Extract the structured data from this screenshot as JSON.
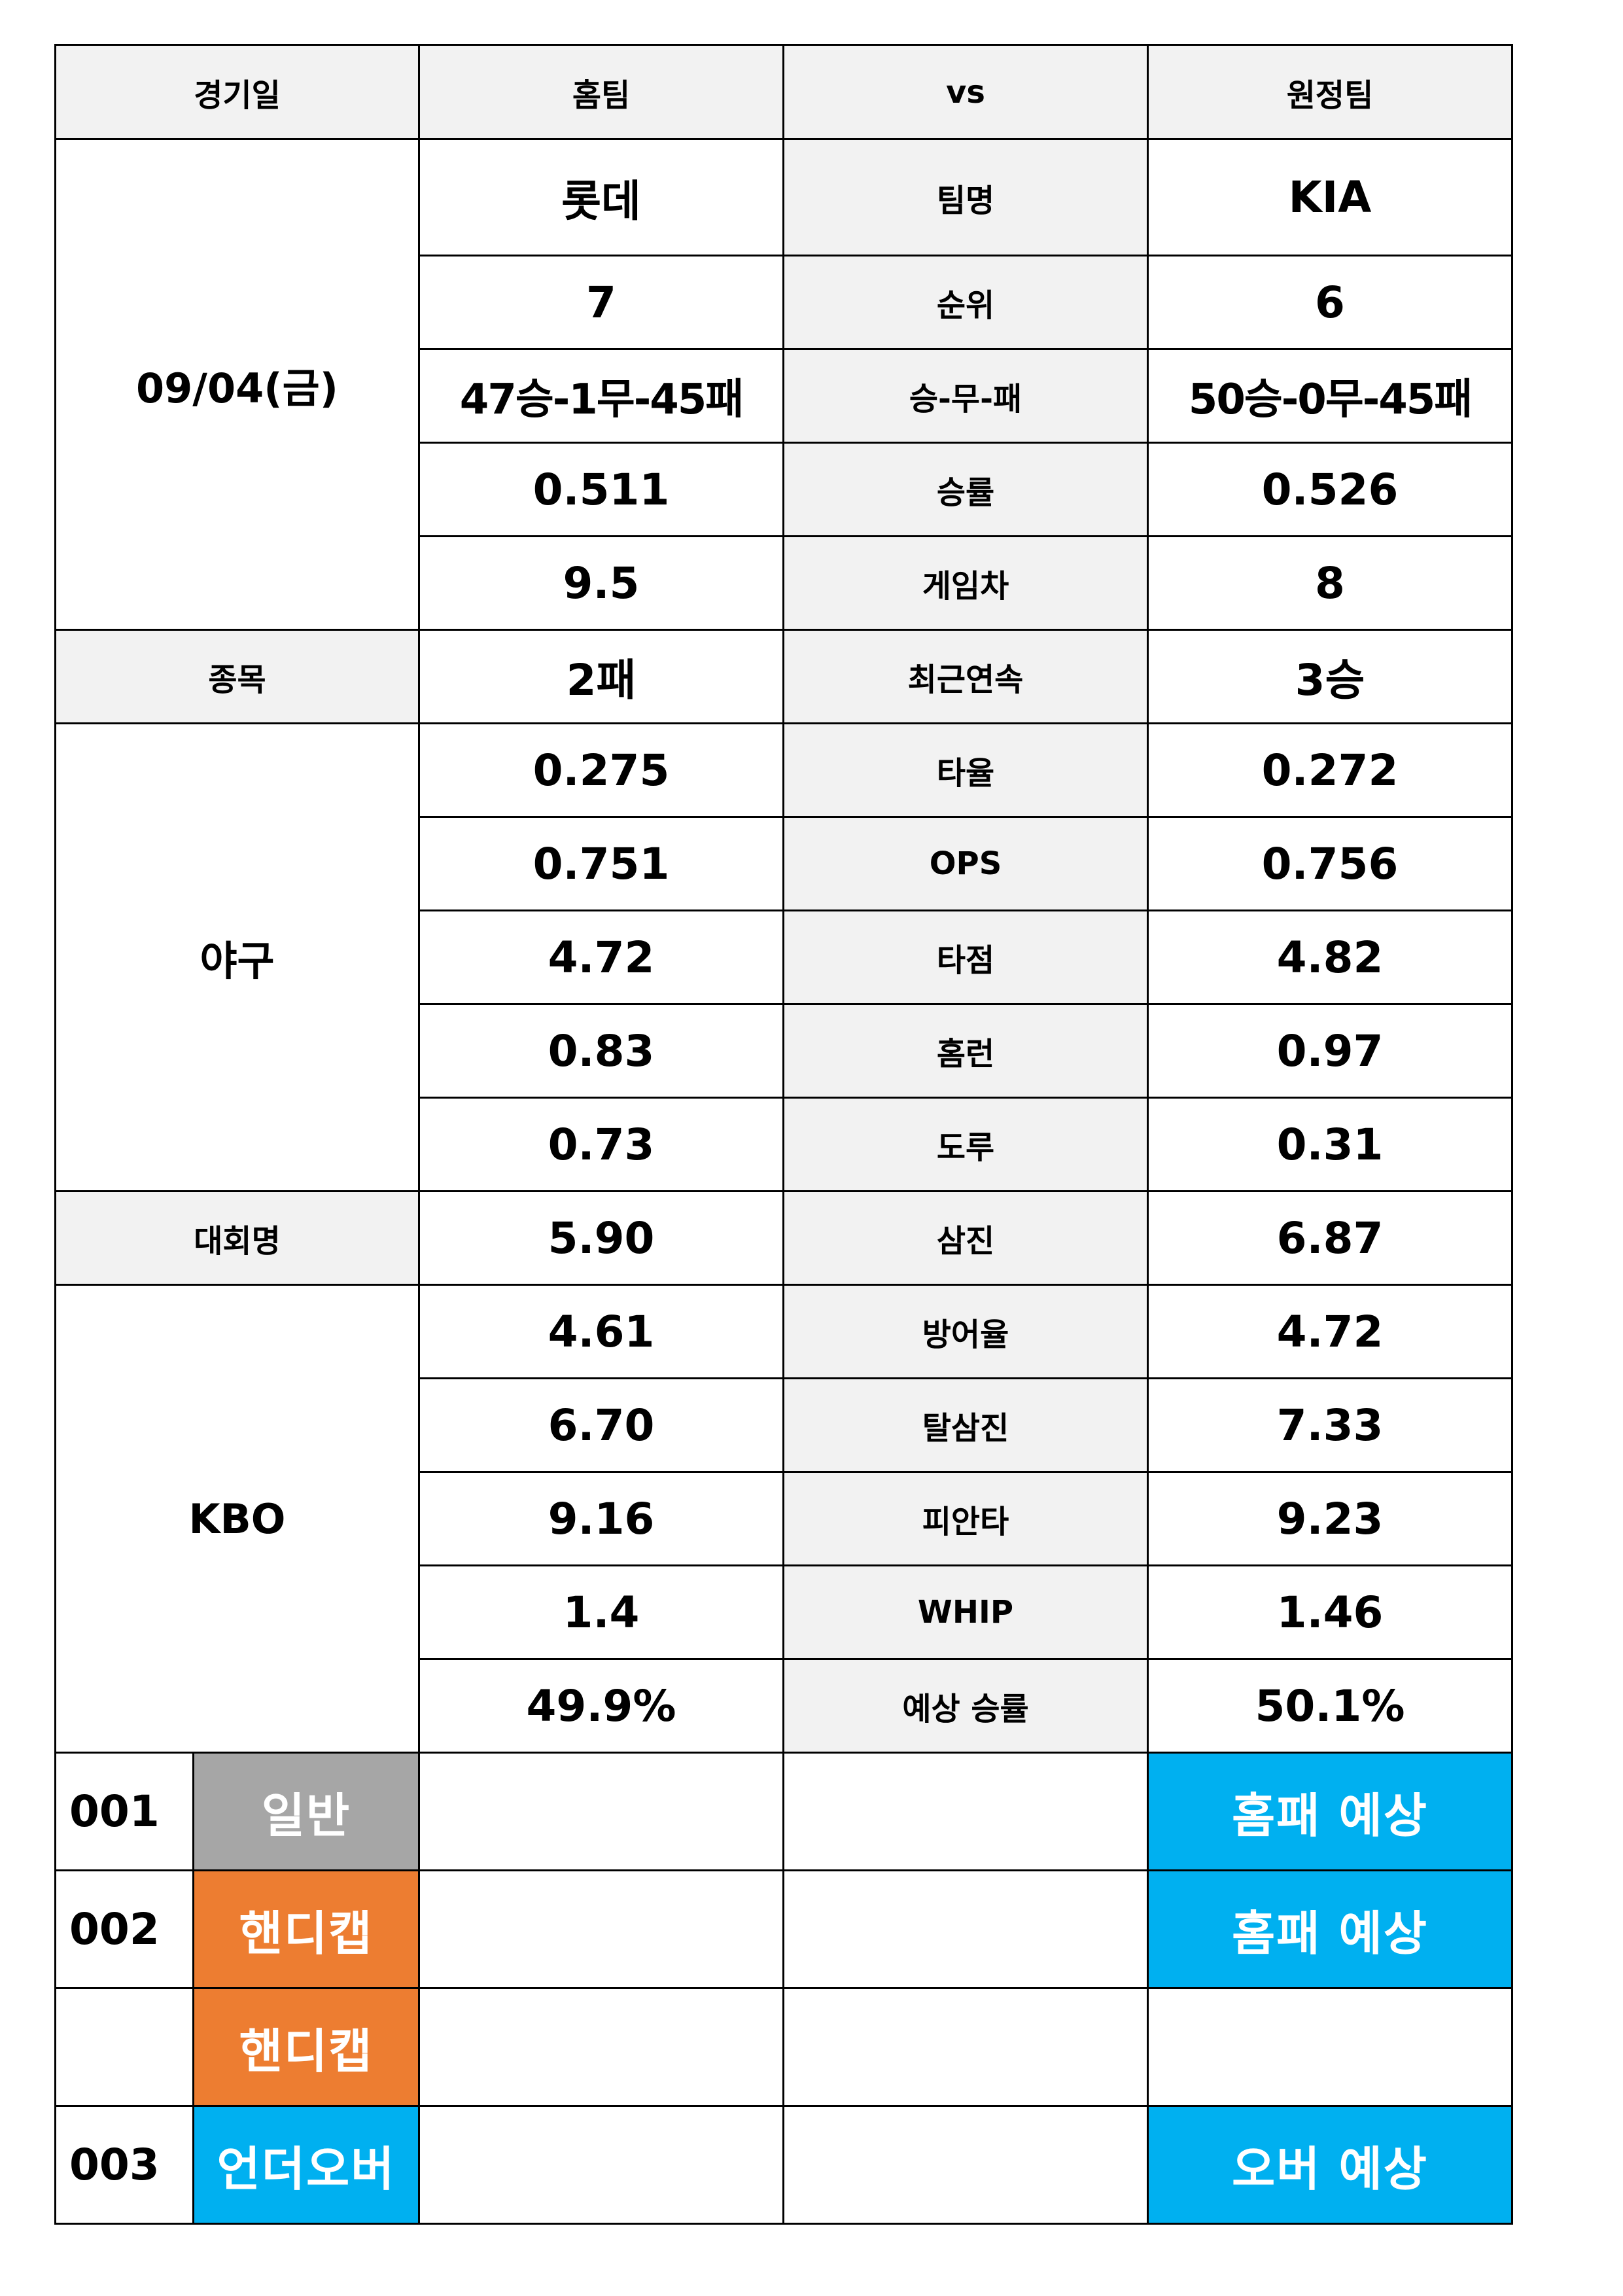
{
  "header": {
    "date_col": "경기일",
    "home_col": "홈팀",
    "vs_col": "vs",
    "away_col": "원정팀"
  },
  "match": {
    "date": "09/04(금)",
    "sport_label": "종목",
    "sport": "야구",
    "league_label": "대회명",
    "league": "KBO"
  },
  "stats": [
    {
      "label": "팀명",
      "home": "롯데",
      "away": "KIA"
    },
    {
      "label": "순위",
      "home": "7",
      "away": "6"
    },
    {
      "label": "승-무-패",
      "home": "47승-1무-45패",
      "away": "50승-0무-45패"
    },
    {
      "label": "승률",
      "home": "0.511",
      "away": "0.526"
    },
    {
      "label": "게임차",
      "home": "9.5",
      "away": "8"
    },
    {
      "label": "최근연속",
      "home": "2패",
      "away": "3승"
    },
    {
      "label": "타율",
      "home": "0.275",
      "away": "0.272"
    },
    {
      "label": "OPS",
      "home": "0.751",
      "away": "0.756"
    },
    {
      "label": "타점",
      "home": "4.72",
      "away": "4.82"
    },
    {
      "label": "홈런",
      "home": "0.83",
      "away": "0.97"
    },
    {
      "label": "도루",
      "home": "0.73",
      "away": "0.31"
    },
    {
      "label": "삼진",
      "home": "5.90",
      "away": "6.87"
    },
    {
      "label": "방어율",
      "home": "4.61",
      "away": "4.72"
    },
    {
      "label": "탈삼진",
      "home": "6.70",
      "away": "7.33"
    },
    {
      "label": "피안타",
      "home": "9.16",
      "away": "9.23"
    },
    {
      "label": "WHIP",
      "home": "1.4",
      "away": "1.46"
    },
    {
      "label": "예상 승률",
      "home": "49.9%",
      "away": "50.1%"
    }
  ],
  "predictions": [
    {
      "number": "001",
      "type": "일반",
      "type_color": "#a6a6a6",
      "result": "홈패 예상"
    },
    {
      "number": "002",
      "type": "핸디캡",
      "type_color": "#ed7d31",
      "result": "홈패 예상"
    },
    {
      "number": "",
      "type": "핸디캡",
      "type_color": "#ed7d31",
      "result": ""
    },
    {
      "number": "003",
      "type": "언더오버",
      "type_color": "#00b0f0",
      "result": "오버 예상"
    }
  ],
  "colors": {
    "header_bg": "#f2f2f2",
    "gray_tag": "#a6a6a6",
    "orange_tag": "#ed7d31",
    "blue_tag": "#00b0f0",
    "border": "#000000"
  }
}
